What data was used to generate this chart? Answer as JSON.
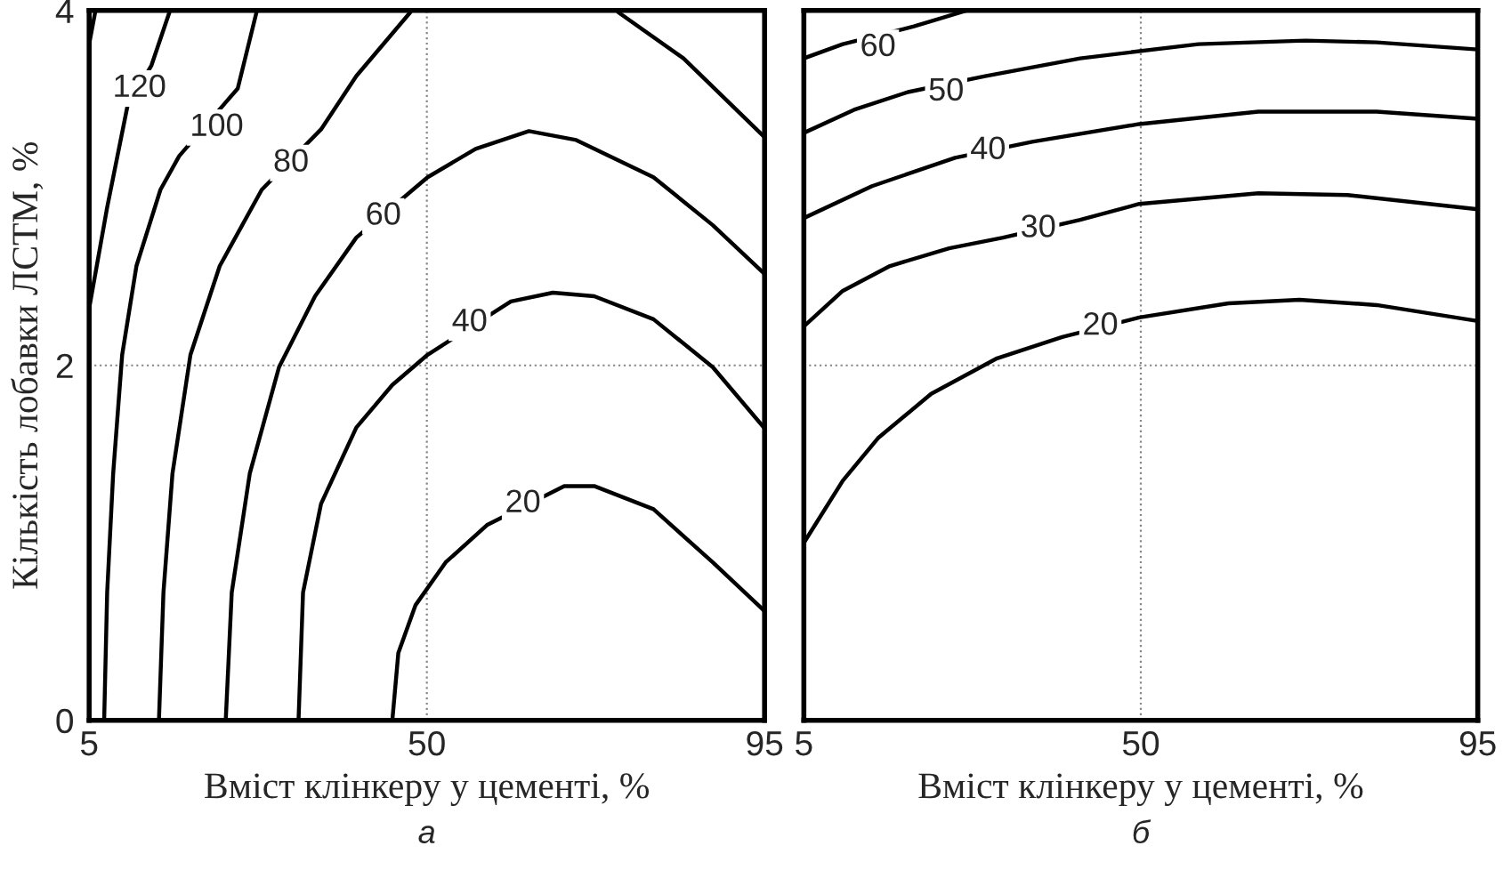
{
  "chart_data": [
    {
      "type": "line",
      "xlabel": "Вміст клінкеру у цементі, %",
      "ylabel": "Кількість лобавки ЛСТМ, %",
      "xlim": [
        5,
        95
      ],
      "ylim": [
        0,
        4
      ],
      "xticks": [
        5,
        50,
        95
      ],
      "yticks": [
        0,
        2,
        4
      ],
      "grid": true,
      "line_style": "solid",
      "marker": "none",
      "series": [
        {
          "color": "#000000",
          "x": [
            5,
            5.8
          ],
          "values": [
            3.81,
            3.99
          ]
        },
        {
          "color": "#000000",
          "x": [
            5,
            7.4,
            10.1,
            13.3,
            15.7
          ],
          "values": [
            2.32,
            2.89,
            3.46,
            3.69,
            3.99
          ]
        },
        {
          "color": "#000000",
          "x": [
            7,
            7.4,
            8.2,
            9.4,
            11.3,
            14.5,
            17,
            24.8,
            27.3
          ],
          "values": [
            0,
            0.72,
            1.39,
            2.06,
            2.56,
            2.99,
            3.18,
            3.56,
            3.99
          ]
        },
        {
          "color": "#000000",
          "x": [
            14.3,
            14.9,
            16.1,
            18.5,
            22.4,
            28,
            35.9,
            40.6,
            47.8
          ],
          "values": [
            0,
            0.72,
            1.39,
            2.06,
            2.56,
            2.99,
            3.33,
            3.63,
            3.99
          ]
        },
        {
          "color": "#000000",
          "x": [
            23.2,
            24,
            26.4,
            30.3,
            35.1,
            40.6,
            50.1,
            56.5,
            63.6,
            69.9,
            80.2,
            88.1,
            94.9
          ],
          "values": [
            0,
            0.72,
            1.39,
            1.99,
            2.39,
            2.72,
            3.06,
            3.22,
            3.32,
            3.27,
            3.06,
            2.79,
            2.52
          ]
        },
        {
          "color": "#000000",
          "x": [
            32.9,
            33.5,
            35.9,
            40.6,
            45.4,
            50.1,
            61.2,
            66.8,
            72.3,
            80.2,
            88.1,
            94.9
          ],
          "values": [
            0,
            0.72,
            1.22,
            1.65,
            1.89,
            2.06,
            2.36,
            2.41,
            2.39,
            2.26,
            1.99,
            1.65
          ]
        },
        {
          "color": "#000000",
          "x": [
            45.4,
            46.2,
            48.5,
            52.5,
            58,
            68.3,
            72.3,
            80.2,
            88.1,
            94.9
          ],
          "values": [
            0,
            0.38,
            0.65,
            0.89,
            1.1,
            1.32,
            1.32,
            1.19,
            0.89,
            0.62
          ]
        },
        {
          "color": "#000000",
          "x": [
            75.5,
            84.2,
            94.9
          ],
          "values": [
            3.99,
            3.73,
            3.29
          ]
        }
      ],
      "annotations": [
        {
          "text": "120",
          "x": 11.7,
          "y": 3.56
        },
        {
          "text": "100",
          "x": 22,
          "y": 3.34
        },
        {
          "text": "80",
          "x": 31.9,
          "y": 3.14
        },
        {
          "text": "60",
          "x": 44.2,
          "y": 2.84
        },
        {
          "text": "40",
          "x": 55.7,
          "y": 2.24
        },
        {
          "text": "20",
          "x": 62.8,
          "y": 1.22
        },
        "а"
      ]
    },
    {
      "type": "line",
      "xlabel": "Вміст клінкеру у цементі, %",
      "xlim": [
        5,
        95
      ],
      "ylim": [
        0,
        4
      ],
      "xticks": [
        5,
        50,
        95
      ],
      "yticks": [
        0,
        2,
        4
      ],
      "tick_labels": "x",
      "grid": true,
      "line_style": "solid",
      "marker": "none",
      "series": [
        {
          "color": "#000000",
          "x": [
            5,
            10.2,
            19.7,
            26.8
          ],
          "values": [
            3.73,
            3.81,
            3.91,
            4.0
          ]
        },
        {
          "color": "#000000",
          "x": [
            5,
            11.7,
            18.9,
            29.2,
            41.9,
            57.7,
            72,
            81.5,
            95
          ],
          "values": [
            3.31,
            3.44,
            3.54,
            3.63,
            3.73,
            3.81,
            3.83,
            3.82,
            3.78
          ]
        },
        {
          "color": "#000000",
          "x": [
            5,
            14.1,
            25.2,
            35.5,
            49.8,
            65.7,
            81.5,
            95
          ],
          "values": [
            2.83,
            3.01,
            3.17,
            3.26,
            3.36,
            3.43,
            3.43,
            3.39
          ]
        },
        {
          "color": "#000000",
          "x": [
            5,
            10.2,
            16.5,
            24.4,
            31.6,
            41.9,
            49.8,
            65.7,
            77.6,
            95
          ],
          "values": [
            2.22,
            2.42,
            2.56,
            2.66,
            2.72,
            2.82,
            2.91,
            2.97,
            2.96,
            2.88
          ]
        },
        {
          "color": "#000000",
          "x": [
            5,
            10.2,
            14.9,
            22,
            30.8,
            39.5,
            49.8,
            61.7,
            71.2,
            81.5,
            95
          ],
          "values": [
            1.0,
            1.35,
            1.59,
            1.84,
            2.04,
            2.16,
            2.27,
            2.35,
            2.37,
            2.34,
            2.25
          ]
        }
      ],
      "annotations": [
        {
          "text": "60",
          "x": 14.9,
          "y": 3.79
        },
        {
          "text": "50",
          "x": 24,
          "y": 3.54
        },
        {
          "text": "40",
          "x": 29.6,
          "y": 3.21
        },
        {
          "text": "30",
          "x": 36.3,
          "y": 2.77
        },
        {
          "text": "20",
          "x": 44.6,
          "y": 2.22
        },
        "б"
      ]
    }
  ]
}
